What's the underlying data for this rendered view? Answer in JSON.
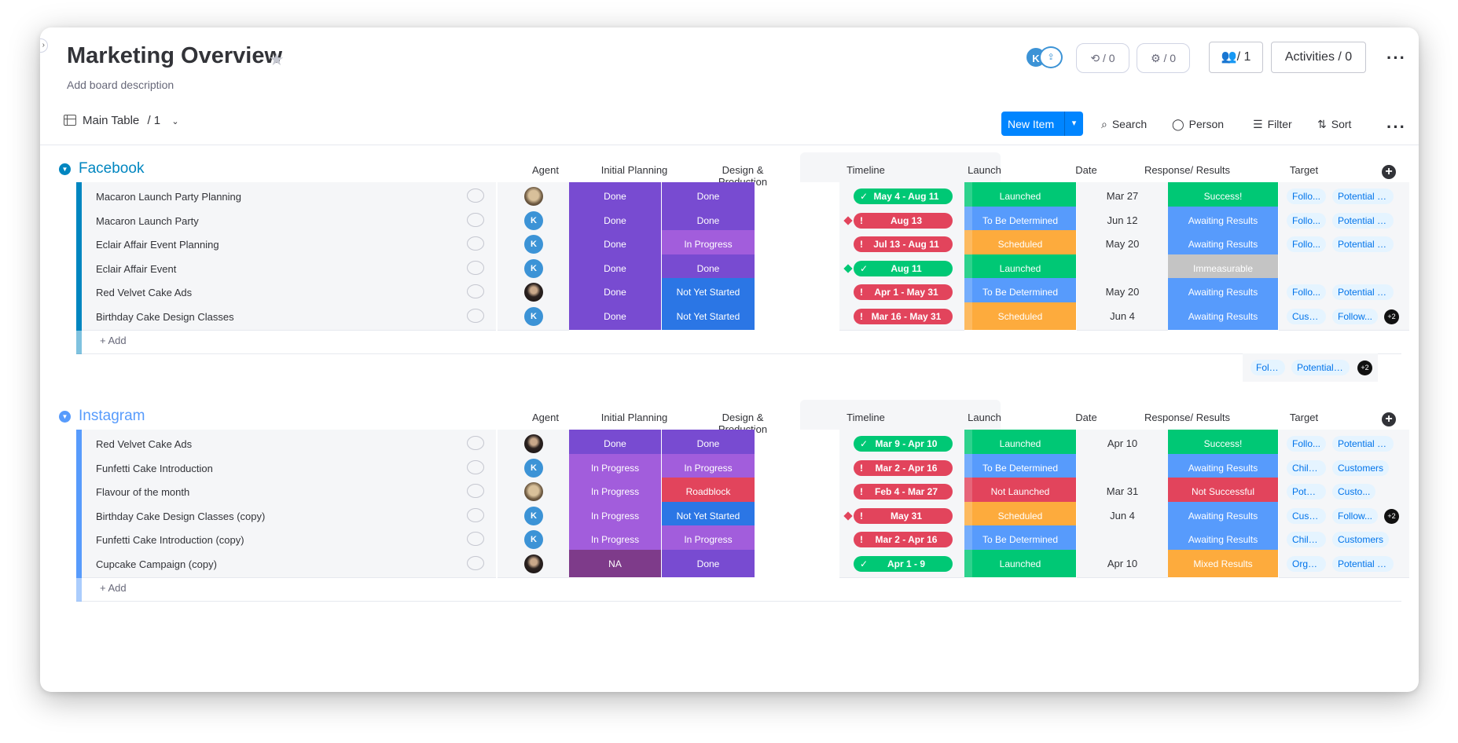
{
  "board": {
    "title": "Marketing Overview",
    "description": "Add board description",
    "avatar_letter": "K",
    "integrations_count": "/ 0",
    "automations_count": "/ 0",
    "members_label": "/ 1",
    "activities_label": "Activities / 0"
  },
  "toolbar": {
    "view_label": "Main Table",
    "view_count": "/ 1",
    "new_item": "New Item",
    "search": "Search",
    "person": "Person",
    "filter": "Filter",
    "sort": "Sort"
  },
  "columns": {
    "agent": "Agent",
    "initial_planning": "Initial Planning",
    "design_production": "Design & Production",
    "timeline": "Timeline",
    "launch": "Launch",
    "date": "Date",
    "response": "Response/ Results",
    "target": "Target"
  },
  "colors": {
    "done": "#784bd1",
    "in_progress": "#a25ddc",
    "not_yet_started": "#2b76e5",
    "roadblock": "#e2445c",
    "na": "#7e3b8a",
    "launched": "#00c875",
    "to_be_determined": "#579bfc",
    "scheduled": "#fdab3d",
    "not_launched": "#e2445c",
    "success": "#00c875",
    "awaiting": "#579bfc",
    "immeasurable": "#c4c4c4",
    "not_successful": "#e2445c",
    "mixed": "#fdab3d",
    "timeline_green": "#00c875",
    "timeline_red": "#e2445c"
  },
  "groups": [
    {
      "name": "Facebook",
      "color": "#0086c0",
      "add_label": "+ Add",
      "rows": [
        {
          "name": "Macaron Launch Party Planning",
          "agent": "dog",
          "initial": "Done",
          "design": "Done",
          "timeline": "May 4 - Aug 11",
          "tl_state": "green",
          "diamond": "",
          "launch": "Launched",
          "date": "Mar 27",
          "response": "Success!",
          "tags": [
            "Follo...",
            "Potential Foll..."
          ],
          "extra": ""
        },
        {
          "name": "Macaron Launch Party",
          "agent": "K",
          "initial": "Done",
          "design": "Done",
          "timeline": "Aug 13",
          "tl_state": "red",
          "diamond": "red",
          "launch": "To Be Determined",
          "date": "Jun 12",
          "response": "Awaiting Results",
          "tags": [
            "Follo...",
            "Potential Foll..."
          ],
          "extra": ""
        },
        {
          "name": "Eclair Affair Event Planning",
          "agent": "K",
          "initial": "Done",
          "design": "In Progress",
          "timeline": "Jul 13 - Aug 11",
          "tl_state": "red",
          "diamond": "",
          "launch": "Scheduled",
          "date": "May 20",
          "response": "Awaiting Results",
          "tags": [
            "Follo...",
            "Potential Foll..."
          ],
          "extra": ""
        },
        {
          "name": "Eclair Affair Event",
          "agent": "K",
          "initial": "Done",
          "design": "Done",
          "timeline": "Aug 11",
          "tl_state": "green",
          "diamond": "green",
          "launch": "Launched",
          "date": "",
          "response": "Immeasurable",
          "tags": [],
          "extra": ""
        },
        {
          "name": "Red Velvet Cake Ads",
          "agent": "girl",
          "initial": "Done",
          "design": "Not Yet Started",
          "timeline": "Apr 1 - May 31",
          "tl_state": "red",
          "diamond": "",
          "launch": "To Be Determined",
          "date": "May 20",
          "response": "Awaiting Results",
          "tags": [
            "Follo...",
            "Potential Foll..."
          ],
          "extra": ""
        },
        {
          "name": "Birthday Cake Design Classes",
          "agent": "K",
          "initial": "Done",
          "design": "Not Yet Started",
          "timeline": "Mar 16 - May 31",
          "tl_state": "red",
          "diamond": "",
          "launch": "Scheduled",
          "date": "Jun 4",
          "response": "Awaiting Results",
          "tags": [
            "Custom...",
            "Follow..."
          ],
          "extra": "+2"
        }
      ],
      "summary_tags": [
        "Follo...",
        "Potential F..."
      ],
      "summary_extra": "+2"
    },
    {
      "name": "Instagram",
      "color": "#579bfc",
      "add_label": "+ Add",
      "rows": [
        {
          "name": "Red Velvet Cake Ads",
          "agent": "girl",
          "initial": "Done",
          "design": "Done",
          "timeline": "Mar 9 - Apr 10",
          "tl_state": "green",
          "diamond": "",
          "launch": "Launched",
          "date": "Apr 10",
          "response": "Success!",
          "tags": [
            "Follo...",
            "Potential Foll..."
          ],
          "extra": ""
        },
        {
          "name": "Funfetti Cake Introduction",
          "agent": "K",
          "initial": "In Progress",
          "design": "In Progress",
          "timeline": "Mar 2 - Apr 16",
          "tl_state": "red",
          "diamond": "",
          "launch": "To Be Determined",
          "date": "",
          "response": "Awaiting Results",
          "tags": [
            "Children",
            "Customers"
          ],
          "extra": ""
        },
        {
          "name": "Flavour of the month",
          "agent": "dog",
          "initial": "In Progress",
          "design": "Roadblock",
          "timeline": "Feb 4 - Mar 27",
          "tl_state": "red",
          "diamond": "",
          "launch": "Not Launched",
          "date": "Mar 31",
          "response": "Not Successful",
          "tags": [
            "Potential Fol...",
            "Custo..."
          ],
          "extra": ""
        },
        {
          "name": "Birthday Cake Design Classes (copy)",
          "agent": "K",
          "initial": "In Progress",
          "design": "Not Yet Started",
          "timeline": "May 31",
          "tl_state": "red",
          "diamond": "red",
          "launch": "Scheduled",
          "date": "Jun 4",
          "response": "Awaiting Results",
          "tags": [
            "Custom...",
            "Follow..."
          ],
          "extra": "+2"
        },
        {
          "name": "Funfetti Cake Introduction (copy)",
          "agent": "K",
          "initial": "In Progress",
          "design": "In Progress",
          "timeline": "Mar 2 - Apr 16",
          "tl_state": "red",
          "diamond": "",
          "launch": "To Be Determined",
          "date": "",
          "response": "Awaiting Results",
          "tags": [
            "Children",
            "Customers"
          ],
          "extra": ""
        },
        {
          "name": "Cupcake Campaign (copy)",
          "agent": "girl",
          "initial": "NA",
          "design": "Done",
          "timeline": "Apr 1 - 9",
          "tl_state": "green",
          "diamond": "",
          "launch": "Launched",
          "date": "Apr 10",
          "response": "Mixed Results",
          "tags": [
            "Organi...",
            "Potential F..."
          ],
          "extra": ""
        }
      ],
      "summary_tags": [],
      "summary_extra": ""
    }
  ]
}
